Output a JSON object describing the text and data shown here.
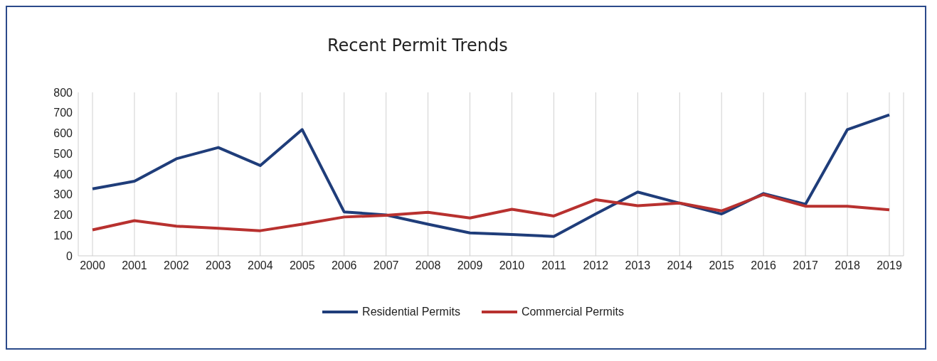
{
  "chart_data": {
    "type": "line",
    "title": "Recent Permit Trends",
    "categories": [
      "2000",
      "2001",
      "2002",
      "2003",
      "2004",
      "2005",
      "2006",
      "2007",
      "2008",
      "2009",
      "2010",
      "2011",
      "2012",
      "2013",
      "2014",
      "2015",
      "2016",
      "2017",
      "2018",
      "2019"
    ],
    "series": [
      {
        "name": "Residential Permits",
        "color": "#1f3d7a",
        "values": [
          328,
          365,
          475,
          530,
          442,
          618,
          215,
          200,
          155,
          112,
          104,
          95,
          205,
          312,
          258,
          205,
          305,
          252,
          618,
          690
        ]
      },
      {
        "name": "Commercial Permits",
        "color": "#b8312f",
        "values": [
          127,
          172,
          145,
          135,
          123,
          155,
          190,
          198,
          213,
          185,
          228,
          195,
          275,
          245,
          258,
          220,
          300,
          243,
          243,
          225
        ]
      }
    ],
    "ylim": [
      0,
      800
    ],
    "yticks": [
      0,
      100,
      200,
      300,
      400,
      500,
      600,
      700,
      800
    ],
    "grid": "x",
    "legend": "bottom",
    "marker": "none",
    "line_style": "solid"
  }
}
